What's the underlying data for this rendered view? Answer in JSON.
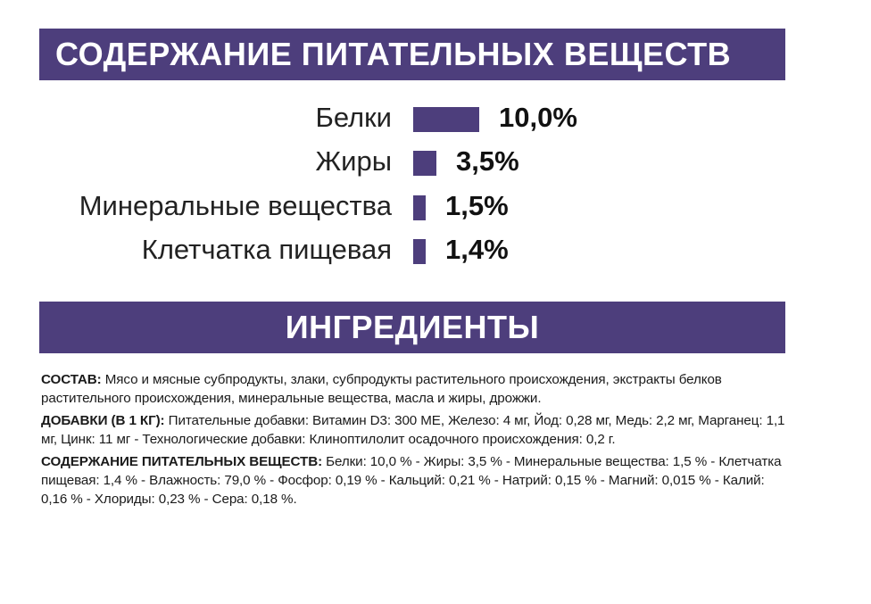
{
  "colors": {
    "accent": "#4d3e7c",
    "text": "#1a1a1a",
    "banner_text": "#ffffff"
  },
  "nutrition": {
    "title": "СОДЕРЖАНИЕ ПИТАТЕЛЬНЫХ ВЕЩЕСТВ",
    "items": [
      {
        "label": "Белки",
        "value": "10,0%",
        "percent": 10.0
      },
      {
        "label": "Жиры",
        "value": "3,5%",
        "percent": 3.5
      },
      {
        "label": "Минеральные вещества",
        "value": "1,5%",
        "percent": 1.5
      },
      {
        "label": "Клетчатка пищевая",
        "value": "1,4%",
        "percent": 1.4
      }
    ]
  },
  "ingredients": {
    "title": "ИНГРЕДИЕНТЫ",
    "composition_label": "СОСТАВ:",
    "composition_text": " Мясо и мясные субпродукты, злаки, субпродукты растительного происхождения, экстракты белков растительного происхождения, минеральные вещества, масла и жиры, дрожжи.",
    "additives_label": "ДОБАВКИ (В 1 КГ):",
    "additives_text": " Питательные добавки: Витамин D3: 300 МЕ, Железо: 4 мг, Йод: 0,28 мг, Медь: 2,2 мг, Марганец: 1,1 мг, Цинк: 11 мг - Технологические добавки: Клиноптилолит осадочного происхождения: 0,2 г.",
    "nutrients_label": "СОДЕРЖАНИЕ ПИТАТЕЛЬНЫХ ВЕЩЕСТВ:",
    "nutrients_text": " Белки: 10,0 % - Жиры: 3,5 % - Минеральные вещества: 1,5 % - Клетчатка пищевая: 1,4 % - Влажность: 79,0 % - Фосфор: 0,19 % - Кальций: 0,21 % - Натрий: 0,15 % - Магний: 0,015 % - Калий: 0,16 % - Хлориды: 0,23 % - Сера: 0,18 %."
  }
}
